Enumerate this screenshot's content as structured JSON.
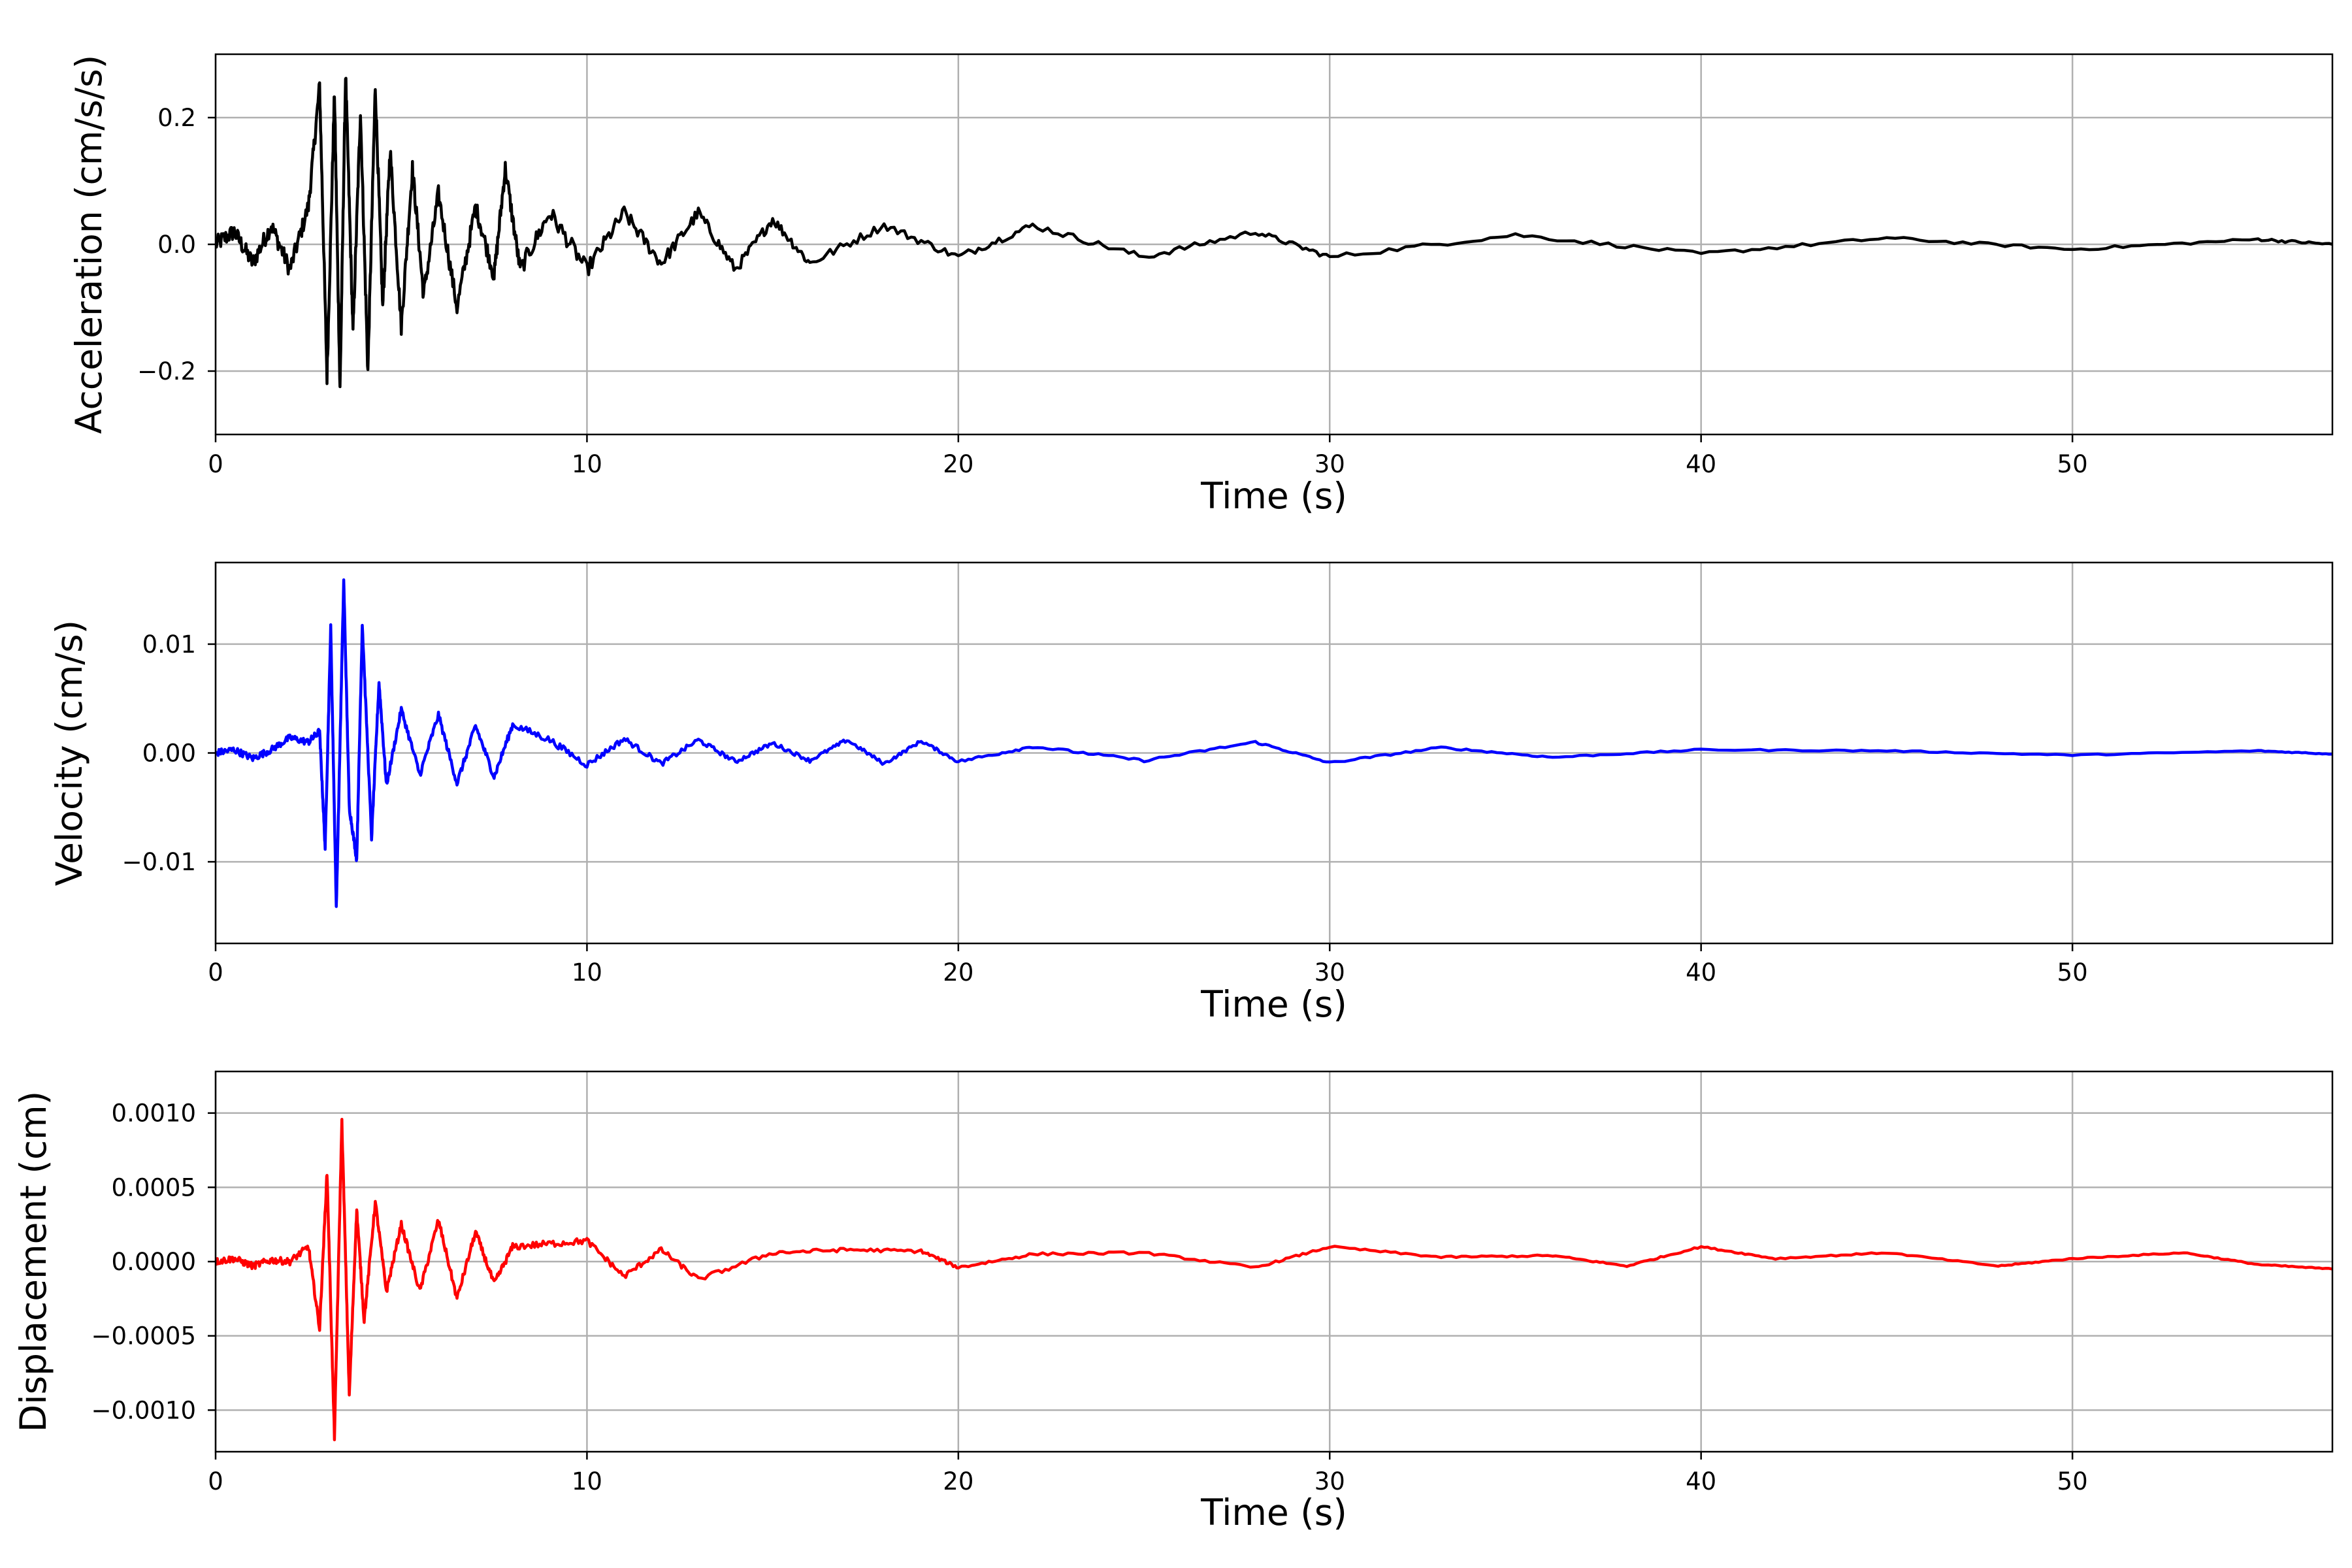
{
  "chart_data": [
    {
      "type": "line",
      "xlabel": "Time (s)",
      "ylabel": "Acceleration (cm/s/s)",
      "xlim": [
        0,
        57
      ],
      "ylim": [
        -0.3,
        0.3
      ],
      "xticks": [
        0,
        10,
        20,
        30,
        40,
        50
      ],
      "xtick_labels": [
        "0",
        "10",
        "20",
        "30",
        "40",
        "50"
      ],
      "yticks": [
        -0.2,
        0.0,
        0.2
      ],
      "ytick_labels": [
        "−0.2",
        "0.0",
        "0.2"
      ],
      "grid": true,
      "color": "#000000",
      "series": [
        {
          "x": [
            0,
            0.5,
            1,
            1.5,
            2,
            2.5,
            2.8,
            3.0,
            3.2,
            3.35,
            3.5,
            3.7,
            3.9,
            4.1,
            4.3,
            4.5,
            4.7,
            5.0,
            5.3,
            5.6,
            6.0,
            6.5,
            7.0,
            7.5,
            7.8,
            8.2,
            9,
            10,
            11,
            12,
            13,
            14,
            15,
            16,
            18,
            20,
            22,
            25,
            28,
            30,
            35,
            40,
            45,
            50,
            55,
            57
          ],
          "y": [
            0.0,
            0.02,
            -0.03,
            0.03,
            -0.04,
            0.06,
            0.25,
            -0.21,
            0.24,
            -0.23,
            0.27,
            -0.14,
            0.21,
            -0.2,
            0.25,
            -0.1,
            0.15,
            -0.13,
            0.12,
            -0.08,
            0.08,
            -0.1,
            0.06,
            -0.05,
            0.12,
            -0.04,
            0.05,
            -0.04,
            0.05,
            -0.03,
            0.05,
            -0.04,
            0.04,
            -0.03,
            0.03,
            -0.02,
            0.03,
            -0.02,
            0.02,
            -0.02,
            0.015,
            -0.015,
            0.01,
            -0.008,
            0.008,
            0.0
          ]
        }
      ]
    },
    {
      "type": "line",
      "xlabel": "Time (s)",
      "ylabel": "Velocity (cm/s)",
      "xlim": [
        0,
        57
      ],
      "ylim": [
        -0.0175,
        0.0175
      ],
      "xticks": [
        0,
        10,
        20,
        30,
        40,
        50
      ],
      "xtick_labels": [
        "0",
        "10",
        "20",
        "30",
        "40",
        "50"
      ],
      "yticks": [
        -0.01,
        0.0,
        0.01
      ],
      "ytick_labels": [
        "−0.01",
        "0.00",
        "0.01"
      ],
      "grid": true,
      "color": "#0000ff",
      "series": [
        {
          "x": [
            0,
            0.5,
            1,
            1.5,
            2,
            2.5,
            2.8,
            2.95,
            3.1,
            3.25,
            3.45,
            3.6,
            3.8,
            3.95,
            4.2,
            4.4,
            4.6,
            5.0,
            5.5,
            6.0,
            6.5,
            7.0,
            7.5,
            8.0,
            9,
            10,
            11,
            12,
            13,
            14,
            15,
            16,
            17,
            18,
            19,
            20,
            22,
            25,
            28,
            30,
            33,
            36,
            40,
            45,
            50,
            55,
            57
          ],
          "y": [
            0.0,
            0.0003,
            -0.0005,
            0.0003,
            0.0014,
            0.001,
            0.002,
            -0.0087,
            0.0115,
            -0.0143,
            0.0159,
            -0.005,
            -0.0098,
            0.0118,
            -0.0078,
            0.0065,
            -0.003,
            0.004,
            -0.002,
            0.0035,
            -0.0028,
            0.0025,
            -0.0022,
            0.0026,
            0.0012,
            -0.0011,
            0.0013,
            -0.001,
            0.0012,
            -0.0008,
            0.0009,
            -0.0007,
            0.0012,
            -0.001,
            0.0011,
            -0.0008,
            0.0006,
            -0.0007,
            0.001,
            -0.0009,
            0.0005,
            -0.0004,
            0.0003,
            0.0002,
            -0.0002,
            0.0002,
            -0.0001
          ]
        }
      ]
    },
    {
      "type": "line",
      "xlabel": "Time (s)",
      "ylabel": "Displacement (cm)",
      "xlim": [
        0,
        57
      ],
      "ylim": [
        -0.00128,
        0.00128
      ],
      "xticks": [
        0,
        10,
        20,
        30,
        40,
        50
      ],
      "xtick_labels": [
        "0",
        "10",
        "20",
        "30",
        "40",
        "50"
      ],
      "yticks": [
        -0.001,
        -0.0005,
        0.0,
        0.0005,
        0.001
      ],
      "ytick_labels": [
        "−0.0010",
        "−0.0005",
        "0.0000",
        "0.0005",
        "0.0010"
      ],
      "grid": true,
      "color": "#ff0000",
      "series": [
        {
          "x": [
            0,
            0.5,
            1,
            1.5,
            2,
            2.5,
            2.8,
            3.0,
            3.2,
            3.4,
            3.6,
            3.8,
            4.0,
            4.3,
            4.6,
            5.0,
            5.5,
            6.0,
            6.5,
            7.0,
            7.5,
            8.0,
            9,
            10,
            11,
            12,
            13,
            15,
            17,
            19,
            20,
            22,
            25,
            28,
            30,
            33,
            36,
            38,
            40,
            42,
            45,
            48,
            50,
            53,
            55,
            57
          ],
          "y": [
            0.0,
            2e-05,
            -3e-05,
            1e-05,
            0.0,
            0.0001,
            -0.00045,
            0.0006,
            -0.00118,
            0.00094,
            -0.0009,
            0.00035,
            -0.0004,
            0.0004,
            -0.0002,
            0.00025,
            -0.0002,
            0.00028,
            -0.00025,
            0.0002,
            -0.00015,
            0.0001,
            0.00012,
            0.00014,
            -0.0001,
            8e-05,
            -0.00012,
            6e-05,
            8e-05,
            7e-05,
            -4e-05,
            5e-05,
            6e-05,
            -4e-05,
            0.0001,
            3e-05,
            4e-05,
            -3e-05,
            0.0001,
            2e-05,
            6e-05,
            -3e-05,
            2e-05,
            6e-05,
            -2e-05,
            -5e-05
          ]
        }
      ]
    }
  ]
}
